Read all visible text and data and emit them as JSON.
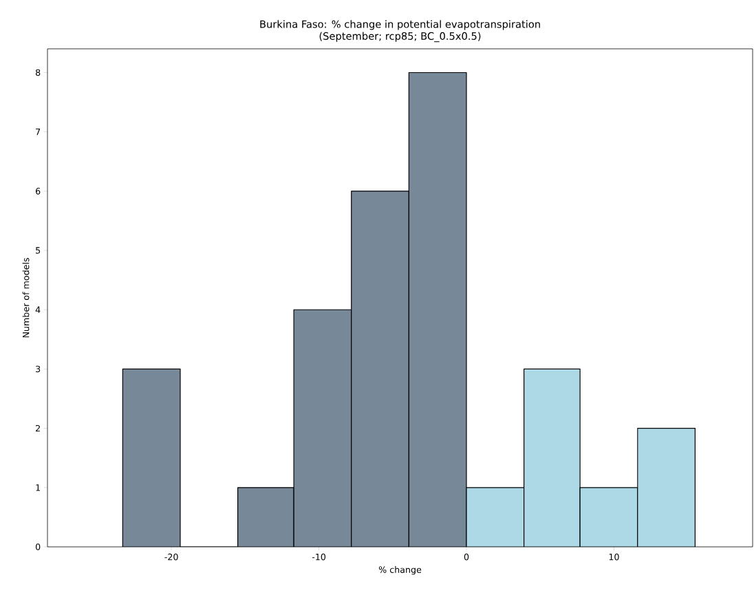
{
  "chart_data": {
    "type": "histogram",
    "title": "Burkina Faso: % change in potential evapotranspiration",
    "subtitle": "(September; rcp85; BC_0.5x0.5)",
    "xlabel": "% change",
    "ylabel": "Number of models",
    "bins": [
      -23.3,
      -19.4,
      -15.5,
      -11.7,
      -7.8,
      -3.9,
      0,
      3.9,
      7.7,
      11.6,
      15.5
    ],
    "values": [
      3,
      0,
      1,
      4,
      6,
      8,
      1,
      3,
      1,
      2
    ],
    "colors": [
      "#778899",
      "#778899",
      "#778899",
      "#778899",
      "#778899",
      "#778899",
      "#add8e6",
      "#add8e6",
      "#add8e6",
      "#add8e6"
    ],
    "xlim": [
      -28.4,
      19.4
    ],
    "ylim": [
      0,
      8.4
    ],
    "xticks": [
      -20,
      -10,
      0,
      10
    ],
    "yticks": [
      0,
      1,
      2,
      3,
      4,
      5,
      6,
      7,
      8
    ]
  }
}
